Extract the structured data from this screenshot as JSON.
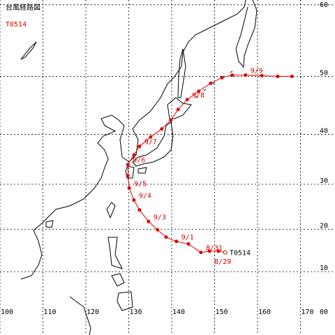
{
  "title": "台風経路図",
  "typhoon": "T0514",
  "lon_ticks": [
    100,
    110,
    120,
    130,
    140,
    150,
    160,
    170,
    {
      "value": 180,
      "label": "00"
    }
  ],
  "lat_ticks": [
    10,
    20,
    30,
    40,
    50,
    60
  ],
  "track": [
    {
      "lon": 152.5,
      "lat": 14.6,
      "label": "T0514"
    },
    {
      "lon": 150.9,
      "lat": 14.9
    },
    {
      "lon": 148.8,
      "lat": 14.9,
      "label": "8/29"
    },
    {
      "lon": 146.8,
      "lat": 14.6,
      "label": "8/31"
    },
    {
      "lon": 143.9,
      "lat": 16.6
    },
    {
      "lon": 141.1,
      "lat": 17.2,
      "label": "9/1"
    },
    {
      "lon": 138.7,
      "lat": 18.2
    },
    {
      "lon": 136.7,
      "lat": 19.9
    },
    {
      "lon": 134.6,
      "lat": 21.8,
      "label": "9/3"
    },
    {
      "lon": 132.5,
      "lat": 24.4
    },
    {
      "lon": 131.2,
      "lat": 26.6,
      "label": "9/4"
    },
    {
      "lon": 130.1,
      "lat": 29.2,
      "label": "9/5"
    },
    {
      "lon": 129.8,
      "lat": 31.8
    },
    {
      "lon": 129.8,
      "lat": 34.1,
      "label": "9/6"
    },
    {
      "lon": 131.2,
      "lat": 36.0
    },
    {
      "lon": 132.5,
      "lat": 37.7,
      "label": "9/7"
    },
    {
      "lon": 135.1,
      "lat": 39.5
    },
    {
      "lon": 137.7,
      "lat": 41.0
    },
    {
      "lon": 139.8,
      "lat": 42.6
    },
    {
      "lon": 141.5,
      "lat": 44.5
    },
    {
      "lon": 143.6,
      "lat": 46.2,
      "label": "9/8"
    },
    {
      "lon": 146.3,
      "lat": 47.6
    },
    {
      "lon": 149.1,
      "lat": 48.9
    },
    {
      "lon": 151.7,
      "lat": 49.8
    },
    {
      "lon": 154.1,
      "lat": 50.2
    },
    {
      "lon": 157.2,
      "lat": 50.2,
      "label": "9/9"
    },
    {
      "lon": 161.0,
      "lat": 50.1
    },
    {
      "lon": 164.7,
      "lat": 50.0
    },
    {
      "lon": 168.0,
      "lat": 50.0
    }
  ]
}
